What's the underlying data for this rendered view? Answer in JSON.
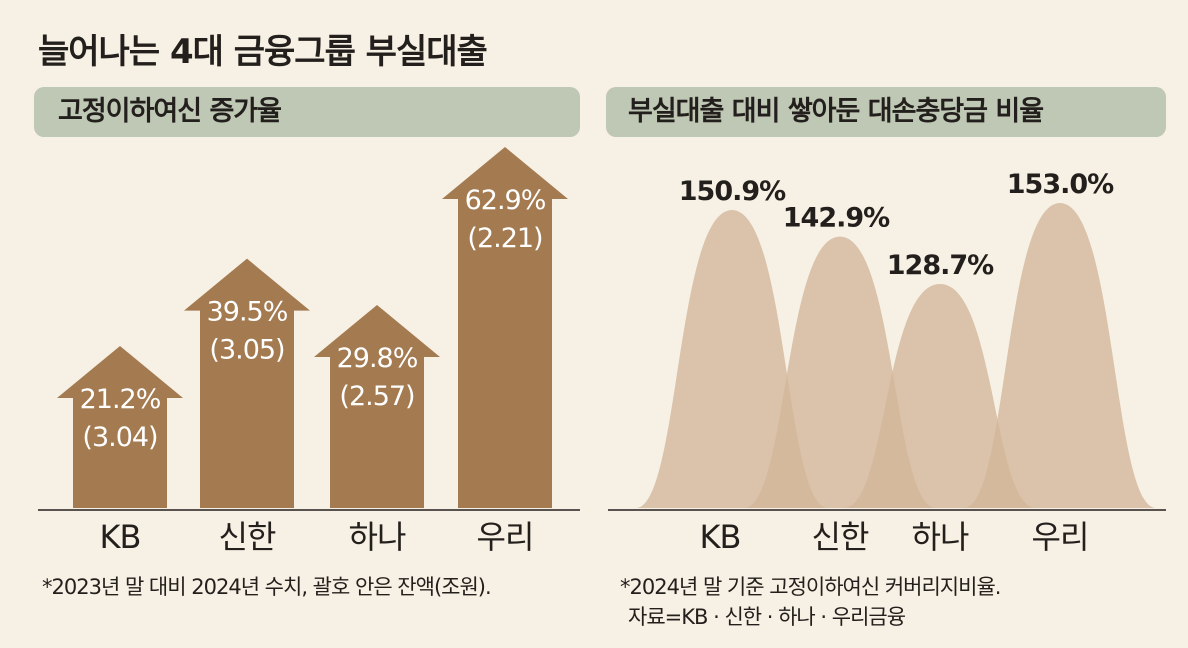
{
  "title": "늘어나는 4대 금융그룹 부실대출",
  "colors": {
    "background": "#f7f0e4",
    "pill": "#bfc7b5",
    "arrow": "#a47b51",
    "hump": "#d2b69a",
    "text": "#231f1c"
  },
  "chart_data": [
    {
      "type": "bar",
      "title": "고정이하여신 증가율",
      "categories": [
        "KB",
        "신한",
        "하나",
        "우리"
      ],
      "series": [
        {
          "values": [
            21.2,
            39.5,
            29.8,
            62.9
          ]
        }
      ],
      "value_labels": [
        "21.2%",
        "39.5%",
        "29.8%",
        "62.9%"
      ],
      "sub_labels": [
        "(3.04)",
        "(3.05)",
        "(2.57)",
        "(2.21)"
      ],
      "note": "*2023년 말 대비 2024년 수치, 괄호 안은 잔액(조원)."
    },
    {
      "type": "area",
      "title": "부실대출 대비 쌓아둔 대손충당금 비율",
      "categories": [
        "KB",
        "신한",
        "하나",
        "우리"
      ],
      "series": [
        {
          "values": [
            150.9,
            142.9,
            128.7,
            153.0
          ]
        }
      ],
      "value_labels": [
        "150.9%",
        "142.9%",
        "128.7%",
        "153.0%"
      ],
      "note_lines": [
        "*2024년 말 기준 고정이하여신 커버리지비율.",
        "자료=KB · 신한 · 하나 · 우리금융"
      ]
    }
  ]
}
